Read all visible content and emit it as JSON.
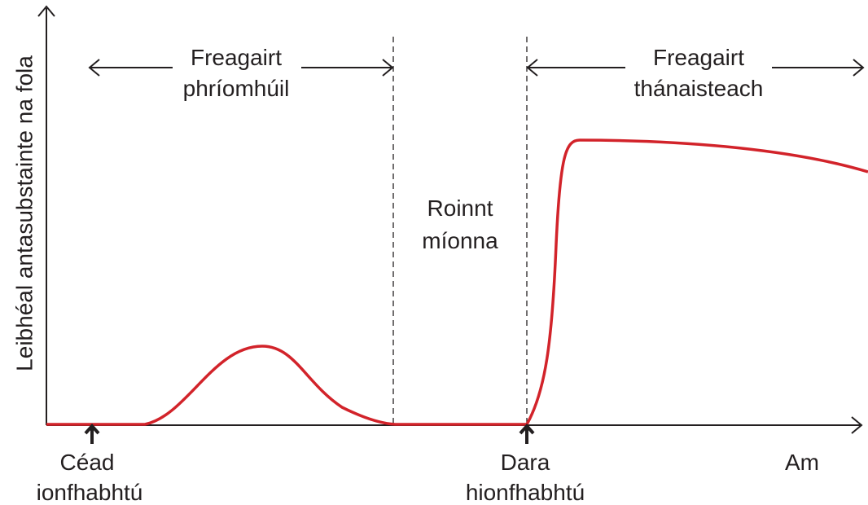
{
  "y_axis_label": "Leibhéal antasubstainte na fola",
  "x_axis_label": "Am",
  "primary_response": [
    "Freagairt",
    "phríomhúil"
  ],
  "gap": [
    "Roinnt",
    "míonna"
  ],
  "secondary_response": [
    "Freagairt",
    "thánaisteach"
  ],
  "first_infection": [
    "Céad",
    "ionfhabhtú"
  ],
  "second_infection": [
    "Dara",
    "hionfhabhtú"
  ]
}
